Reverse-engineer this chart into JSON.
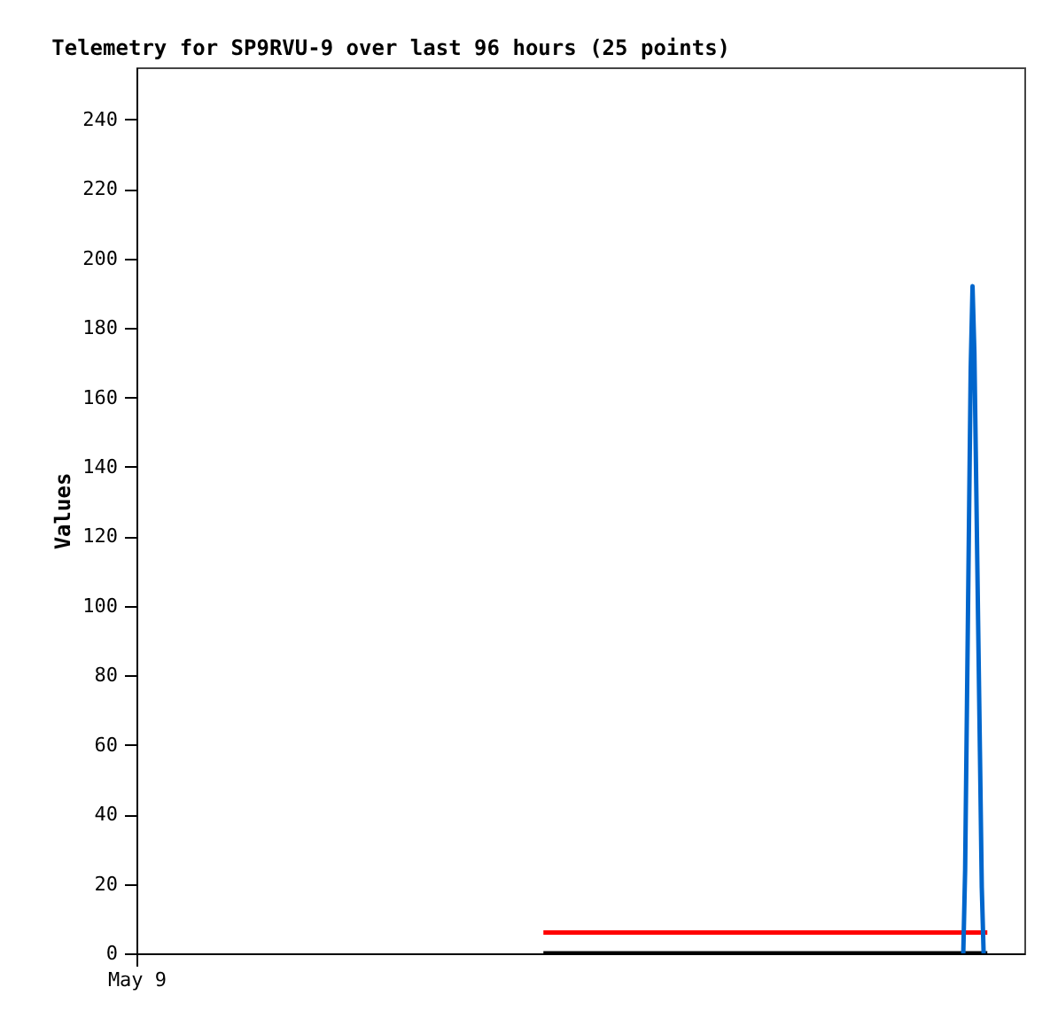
{
  "chart_data": {
    "type": "line",
    "title": "Telemetry for SP9RVU-9 over last 96 hours (25 points)",
    "ylabel": "Values",
    "categories": [
      "May 9",
      null,
      null,
      null,
      null,
      null,
      null,
      null,
      null,
      null,
      null,
      null,
      null,
      null,
      null,
      null,
      null,
      null,
      null,
      null,
      null,
      null,
      null,
      null,
      null,
      null,
      null,
      null,
      null,
      null,
      null,
      null,
      null,
      null,
      null,
      null,
      null,
      null,
      null,
      null,
      null,
      null,
      null,
      null,
      null,
      null,
      null,
      null,
      null,
      null,
      null,
      null,
      null,
      null,
      null,
      null,
      null,
      null,
      null,
      null,
      null,
      null,
      null,
      null,
      null,
      null,
      null,
      null,
      null,
      null,
      null,
      null,
      null,
      null,
      null,
      null,
      null,
      null,
      null,
      null,
      null,
      null,
      null,
      null,
      null,
      null,
      null,
      null,
      null,
      null,
      null,
      null,
      null,
      null,
      null,
      null,
      null,
      null,
      null,
      null,
      null,
      null,
      null,
      null,
      null,
      null,
      null,
      null,
      null,
      null,
      null,
      null,
      null,
      null,
      null,
      null,
      null,
      null,
      null,
      null,
      null,
      null,
      null,
      null,
      null,
      null,
      null,
      null,
      null,
      null,
      null,
      null,
      null,
      null,
      null,
      null,
      null,
      null,
      null,
      null,
      null,
      null,
      null,
      null,
      null,
      null,
      null,
      null,
      null,
      null,
      null,
      null,
      null,
      null,
      null,
      null,
      null,
      null,
      null,
      null,
      null,
      null,
      null,
      null,
      null,
      null,
      null,
      null,
      null,
      null,
      null,
      null,
      null,
      null,
      null,
      null,
      null,
      null,
      null,
      null,
      null,
      null,
      null,
      null,
      null,
      null,
      null,
      null,
      null,
      null,
      null,
      null,
      null,
      null,
      null,
      null,
      null,
      null,
      null,
      null,
      null,
      null,
      null,
      null,
      null,
      null,
      null,
      null,
      null,
      null,
      null,
      null,
      null,
      null,
      null,
      null,
      null,
      null,
      null,
      null,
      null,
      null,
      null,
      null,
      null,
      null,
      null,
      null,
      null,
      null,
      null,
      null,
      null,
      null,
      null,
      null,
      null,
      null,
      null,
      null,
      null,
      null,
      null,
      null,
      null,
      null,
      null,
      null,
      null,
      null,
      null,
      null,
      null,
      null,
      null,
      null,
      null,
      null,
      null,
      null,
      null,
      null,
      null,
      null,
      null,
      null,
      null,
      null,
      null,
      null,
      null,
      null,
      null,
      null,
      null,
      null,
      null,
      null,
      null,
      null,
      null,
      null,
      null,
      null,
      null,
      null,
      null,
      null,
      null,
      null,
      null,
      null,
      null,
      null,
      null,
      null,
      null,
      null,
      null,
      null,
      null,
      null,
      null,
      null,
      null,
      null,
      null,
      null,
      null,
      null,
      null,
      null,
      null,
      null,
      null,
      null,
      null,
      null,
      null,
      null,
      null,
      null,
      null,
      null,
      null,
      null,
      null,
      null,
      null,
      null,
      null,
      null,
      null,
      null,
      null,
      null,
      null,
      null,
      null,
      null,
      null,
      null,
      null,
      null,
      null,
      null,
      null,
      null,
      null,
      null,
      null,
      null,
      null,
      null,
      null,
      null,
      null,
      null,
      null,
      null,
      null,
      null,
      null,
      null,
      null,
      null,
      null,
      null,
      null,
      null,
      null,
      null,
      null,
      null,
      null,
      null,
      null,
      null,
      null,
      null,
      null,
      null,
      null,
      null,
      null,
      null,
      null,
      null,
      null,
      null,
      null,
      null,
      null,
      null,
      null,
      null,
      null,
      null,
      null,
      null,
      null,
      null,
      null,
      null,
      null,
      null,
      null,
      null,
      null,
      null,
      null,
      null,
      null,
      null,
      null,
      null,
      null,
      null,
      null,
      null,
      null,
      null,
      null,
      null,
      null,
      null,
      null,
      null,
      null,
      null,
      null,
      null,
      null,
      null,
      null,
      null,
      null,
      null,
      null,
      null,
      null,
      null,
      null,
      null,
      null,
      null,
      null,
      null,
      null,
      null,
      null,
      null,
      null,
      null,
      null,
      null,
      null,
      null,
      null,
      null,
      null,
      null,
      null,
      null,
      null,
      null,
      null,
      null,
      null,
      null,
      null,
      null,
      null,
      null,
      null,
      null,
      null,
      null,
      null,
      null,
      null
    ],
    "ylim": [
      0,
      255
    ],
    "yticks": [
      0,
      20,
      40,
      60,
      80,
      100,
      120,
      140,
      160,
      180,
      200,
      220,
      240
    ],
    "grid": false,
    "legend": false,
    "marker": "none",
    "line_style": "solid",
    "series": [
      {
        "color": "#000000",
        "values": [
          null,
          null,
          null,
          null,
          null,
          null,
          null,
          null,
          null,
          null,
          null,
          null,
          null,
          null,
          null,
          null,
          null,
          null,
          null,
          null,
          null,
          null,
          null,
          null,
          null,
          null,
          null,
          null,
          null,
          null,
          null,
          null,
          null,
          null,
          null,
          null,
          null,
          null,
          null,
          null,
          null,
          null,
          null,
          null,
          null,
          null,
          null,
          null,
          null,
          null,
          null,
          null,
          null,
          null,
          null,
          null,
          null,
          null,
          null,
          null,
          null,
          null,
          null,
          null,
          null,
          null,
          null,
          null,
          null,
          null,
          null,
          null,
          null,
          null,
          null,
          null,
          null,
          null,
          null,
          null,
          null,
          null,
          null,
          null,
          null,
          null,
          null,
          null,
          null,
          null,
          null,
          null,
          null,
          null,
          null,
          null,
          null,
          null,
          null,
          null,
          null,
          null,
          null,
          null,
          null,
          null,
          null,
          null,
          null,
          null,
          null,
          null,
          null,
          null,
          null,
          null,
          null,
          null,
          null,
          null,
          null,
          null,
          null,
          null,
          null,
          null,
          null,
          null,
          null,
          null,
          null,
          null,
          null,
          null,
          null,
          null,
          null,
          null,
          null,
          null,
          null,
          null,
          null,
          null,
          null,
          null,
          null,
          null,
          null,
          null,
          null,
          null,
          null,
          null,
          null,
          null,
          null,
          null,
          null,
          null,
          null,
          null,
          null,
          null,
          null,
          null,
          null,
          null,
          null,
          null,
          null,
          null,
          null,
          null,
          null,
          null,
          null,
          null,
          null,
          null,
          null,
          null,
          null,
          null,
          null,
          null,
          null,
          null,
          null,
          null,
          null,
          null,
          null,
          null,
          null,
          null,
          null,
          null,
          null,
          null,
          null,
          null,
          null,
          null,
          null,
          null,
          null,
          null,
          null,
          null,
          null,
          null,
          null,
          null,
          null,
          null,
          null,
          null,
          null,
          null,
          0,
          null,
          null,
          null,
          null,
          null,
          null,
          null,
          null,
          null,
          null,
          null,
          null,
          null,
          null,
          null,
          null,
          null,
          null,
          null,
          null,
          null,
          null,
          null,
          null,
          null,
          null,
          null,
          null,
          null,
          null,
          null,
          null,
          null,
          null,
          null,
          null,
          null,
          null,
          null,
          null,
          null,
          null,
          null,
          null,
          null,
          null,
          null,
          null,
          null,
          null,
          null,
          null,
          null,
          null,
          null,
          null,
          null,
          null,
          null,
          null,
          null,
          null,
          null,
          null,
          null,
          null,
          null,
          null,
          null,
          null,
          null,
          null,
          null,
          null,
          null,
          null,
          null,
          null,
          null,
          null,
          null,
          null,
          null,
          null,
          null,
          null,
          null,
          null,
          null,
          null,
          null,
          null,
          null,
          null,
          null,
          null,
          null,
          null,
          null,
          null,
          null,
          null,
          null,
          null,
          null,
          null,
          null,
          null,
          null,
          null,
          null,
          null,
          null,
          null,
          null,
          null,
          null,
          null,
          null,
          null,
          null,
          null,
          null,
          null,
          null,
          null,
          null,
          null,
          null,
          null,
          null,
          null,
          null,
          null,
          null,
          null,
          null,
          null,
          null,
          null,
          null,
          null,
          null,
          null,
          null,
          null,
          null,
          null,
          null,
          null,
          null,
          null,
          null,
          null,
          null,
          null,
          null,
          null,
          null,
          null,
          null,
          null,
          null,
          null,
          null,
          null,
          null,
          null,
          null,
          null,
          null,
          null,
          null,
          null,
          null,
          null,
          null,
          null,
          null,
          null,
          null,
          null,
          null,
          null,
          null,
          null,
          null,
          null,
          null,
          null,
          null,
          null,
          null,
          null,
          null,
          null,
          null,
          null,
          null,
          null,
          null,
          null,
          null,
          null,
          null,
          null,
          null,
          null,
          null,
          null,
          null,
          null,
          null,
          null,
          null,
          null,
          null,
          null,
          null,
          null,
          null,
          null,
          null,
          null,
          null,
          null,
          null,
          null,
          null,
          null,
          null,
          null,
          null,
          null,
          null,
          null,
          null,
          null,
          null,
          0,
          null,
          null,
          null,
          null,
          null,
          null,
          null,
          null,
          null,
          null,
          null,
          null,
          null,
          null,
          null,
          null,
          null,
          null,
          null,
          null
        ]
      },
      {
        "color": "#ff0000",
        "values": [
          null,
          null,
          null,
          null,
          null,
          null,
          null,
          null,
          null,
          null,
          null,
          null,
          null,
          null,
          null,
          null,
          null,
          null,
          null,
          null,
          null,
          null,
          null,
          null,
          null,
          null,
          null,
          null,
          null,
          null,
          null,
          null,
          null,
          null,
          null,
          null,
          null,
          null,
          null,
          null,
          null,
          null,
          null,
          null,
          null,
          null,
          null,
          null,
          null,
          null,
          null,
          null,
          null,
          null,
          null,
          null,
          null,
          null,
          null,
          null,
          null,
          null,
          null,
          null,
          null,
          null,
          null,
          null,
          null,
          null,
          null,
          null,
          null,
          null,
          null,
          null,
          null,
          null,
          null,
          null,
          null,
          null,
          null,
          null,
          null,
          null,
          null,
          null,
          null,
          null,
          null,
          null,
          null,
          null,
          null,
          null,
          null,
          null,
          null,
          null,
          null,
          null,
          null,
          null,
          null,
          null,
          null,
          null,
          null,
          null,
          null,
          null,
          null,
          null,
          null,
          null,
          null,
          null,
          null,
          null,
          null,
          null,
          null,
          null,
          null,
          null,
          null,
          null,
          null,
          null,
          null,
          null,
          null,
          null,
          null,
          null,
          null,
          null,
          null,
          null,
          null,
          null,
          null,
          null,
          null,
          null,
          null,
          null,
          null,
          null,
          null,
          null,
          null,
          null,
          null,
          null,
          null,
          null,
          null,
          null,
          null,
          null,
          null,
          null,
          null,
          null,
          null,
          null,
          null,
          null,
          null,
          null,
          null,
          null,
          null,
          null,
          null,
          null,
          null,
          null,
          null,
          null,
          null,
          null,
          null,
          null,
          null,
          null,
          null,
          null,
          null,
          null,
          null,
          null,
          null,
          null,
          null,
          null,
          null,
          null,
          null,
          null,
          null,
          null,
          null,
          null,
          null,
          null,
          null,
          null,
          null,
          null,
          null,
          null,
          null,
          null,
          null,
          null,
          null,
          null,
          6,
          null,
          null,
          null,
          null,
          null,
          null,
          null,
          null,
          null,
          null,
          null,
          null,
          null,
          null,
          null,
          null,
          null,
          null,
          null,
          null,
          null,
          null,
          null,
          null,
          null,
          null,
          null,
          null,
          null,
          null,
          null,
          null,
          null,
          null,
          null,
          null,
          null,
          null,
          null,
          null,
          null,
          null,
          null,
          null,
          null,
          null,
          null,
          null,
          null,
          null,
          null,
          null,
          null,
          null,
          null,
          null,
          null,
          null,
          null,
          null,
          null,
          null,
          null,
          null,
          null,
          null,
          null,
          null,
          null,
          null,
          null,
          null,
          null,
          null,
          null,
          null,
          null,
          null,
          null,
          null,
          null,
          null,
          null,
          null,
          null,
          null,
          null,
          null,
          null,
          null,
          null,
          null,
          null,
          null,
          null,
          null,
          null,
          null,
          null,
          null,
          null,
          null,
          null,
          null,
          null,
          null,
          null,
          null,
          null,
          null,
          null,
          null,
          null,
          null,
          null,
          null,
          null,
          null,
          null,
          null,
          null,
          null,
          null,
          null,
          null,
          null,
          null,
          null,
          null,
          null,
          null,
          null,
          null,
          null,
          null,
          null,
          null,
          null,
          null,
          null,
          null,
          null,
          null,
          null,
          null,
          null,
          null,
          null,
          null,
          null,
          null,
          null,
          null,
          null,
          null,
          null,
          null,
          null,
          null,
          null,
          null,
          null,
          null,
          null,
          null,
          null,
          null,
          null,
          null,
          null,
          null,
          null,
          null,
          null,
          null,
          null,
          null,
          null,
          null,
          null,
          null,
          null,
          null,
          null,
          null,
          null,
          null,
          null,
          null,
          null,
          null,
          null,
          null,
          null,
          null,
          null,
          null,
          null,
          null,
          null,
          null,
          null,
          null,
          null,
          null,
          null,
          null,
          null,
          null,
          null,
          null,
          null,
          null,
          null,
          null,
          null,
          null,
          null,
          null,
          null,
          null,
          null,
          null,
          null,
          null,
          null,
          null,
          null,
          null,
          null,
          null,
          null,
          null,
          null,
          null,
          null,
          null,
          null,
          null,
          6,
          null,
          null,
          null,
          null,
          null,
          null,
          null,
          null,
          null,
          null,
          null,
          null,
          null,
          null,
          null,
          null,
          null,
          null,
          null,
          null
        ]
      },
      {
        "color": "#0066cc",
        "values": [
          null,
          null,
          null,
          null,
          null,
          null,
          null,
          null,
          null,
          null,
          null,
          null,
          null,
          null,
          null,
          null,
          null,
          null,
          null,
          null,
          null,
          null,
          null,
          null,
          null,
          null,
          null,
          null,
          null,
          null,
          null,
          null,
          null,
          null,
          null,
          null,
          null,
          null,
          null,
          null,
          null,
          null,
          null,
          null,
          null,
          null,
          null,
          null,
          null,
          null,
          null,
          null,
          null,
          null,
          null,
          null,
          null,
          null,
          null,
          null,
          null,
          null,
          null,
          null,
          null,
          null,
          null,
          null,
          null,
          null,
          null,
          null,
          null,
          null,
          null,
          null,
          null,
          null,
          null,
          null,
          null,
          null,
          null,
          null,
          null,
          null,
          null,
          null,
          null,
          null,
          null,
          null,
          null,
          null,
          null,
          null,
          null,
          null,
          null,
          null,
          null,
          null,
          null,
          null,
          null,
          null,
          null,
          null,
          null,
          null,
          null,
          null,
          null,
          null,
          null,
          null,
          null,
          null,
          null,
          null,
          null,
          null,
          null,
          null,
          null,
          null,
          null,
          null,
          null,
          null,
          null,
          null,
          null,
          null,
          null,
          null,
          null,
          null,
          null,
          null,
          null,
          null,
          null,
          null,
          null,
          null,
          null,
          null,
          null,
          null,
          null,
          null,
          null,
          null,
          null,
          null,
          null,
          null,
          null,
          null,
          null,
          null,
          null,
          null,
          null,
          null,
          null,
          null,
          null,
          null,
          null,
          null,
          null,
          null,
          null,
          null,
          null,
          null,
          null,
          null,
          null,
          null,
          null,
          null,
          null,
          null,
          null,
          null,
          null,
          null,
          null,
          null,
          null,
          null,
          null,
          null,
          null,
          null,
          null,
          null,
          null,
          null,
          null,
          null,
          null,
          null,
          null,
          null,
          null,
          null,
          null,
          null,
          null,
          null,
          null,
          null,
          null,
          null,
          null,
          null,
          null,
          null,
          null,
          null,
          null,
          null,
          null,
          null,
          null,
          null,
          null,
          null,
          null,
          null,
          null,
          null,
          null,
          null,
          null,
          null,
          null,
          null,
          null,
          null,
          null,
          null,
          null,
          null,
          null,
          null,
          null,
          null,
          null,
          null,
          null,
          null,
          null,
          null,
          null,
          null,
          null,
          null,
          null,
          null,
          null,
          null,
          null,
          null,
          null,
          null,
          null,
          null,
          null,
          null,
          null,
          null,
          null,
          null,
          null,
          null,
          null,
          null,
          null,
          null,
          null,
          null,
          null,
          null,
          null,
          null,
          null,
          null,
          null,
          null,
          null,
          null,
          null,
          null,
          null,
          null,
          null,
          null,
          null,
          null,
          null,
          null,
          null,
          null,
          null,
          null,
          null,
          null,
          null,
          null,
          null,
          null,
          null,
          null,
          null,
          null,
          null,
          null,
          null,
          null,
          null,
          null,
          null,
          null,
          null,
          null,
          null,
          null,
          null,
          null,
          null,
          null,
          null,
          null,
          null,
          null,
          null,
          null,
          null,
          null,
          null,
          null,
          null,
          null,
          null,
          null,
          null,
          null,
          null,
          null,
          null,
          null,
          null,
          null,
          null,
          null,
          null,
          null,
          null,
          null,
          null,
          null,
          null,
          null,
          null,
          null,
          null,
          null,
          null,
          null,
          null,
          null,
          null,
          null,
          null,
          null,
          null,
          null,
          null,
          null,
          null,
          null,
          null,
          null,
          null,
          null,
          null,
          null,
          null,
          null,
          null,
          null,
          null,
          null,
          null,
          null,
          null,
          null,
          null,
          null,
          null,
          null,
          null,
          null,
          null,
          null,
          null,
          null,
          null,
          null,
          null,
          null,
          null,
          null,
          null,
          null,
          null,
          null,
          null,
          null,
          null,
          null,
          null,
          null,
          null,
          null,
          null,
          null,
          null,
          null,
          null,
          null,
          null,
          null,
          null,
          null,
          null,
          null,
          null,
          null,
          null,
          null,
          null,
          0,
          24,
          72,
          120,
          168,
          192,
          173,
          135,
          96,
          58,
          19,
          0,
          null,
          null,
          null,
          null,
          null,
          null,
          null,
          null,
          null,
          null,
          null,
          null,
          null,
          null,
          null,
          null,
          null,
          null,
          null,
          null,
          null,
          null
        ]
      }
    ]
  }
}
